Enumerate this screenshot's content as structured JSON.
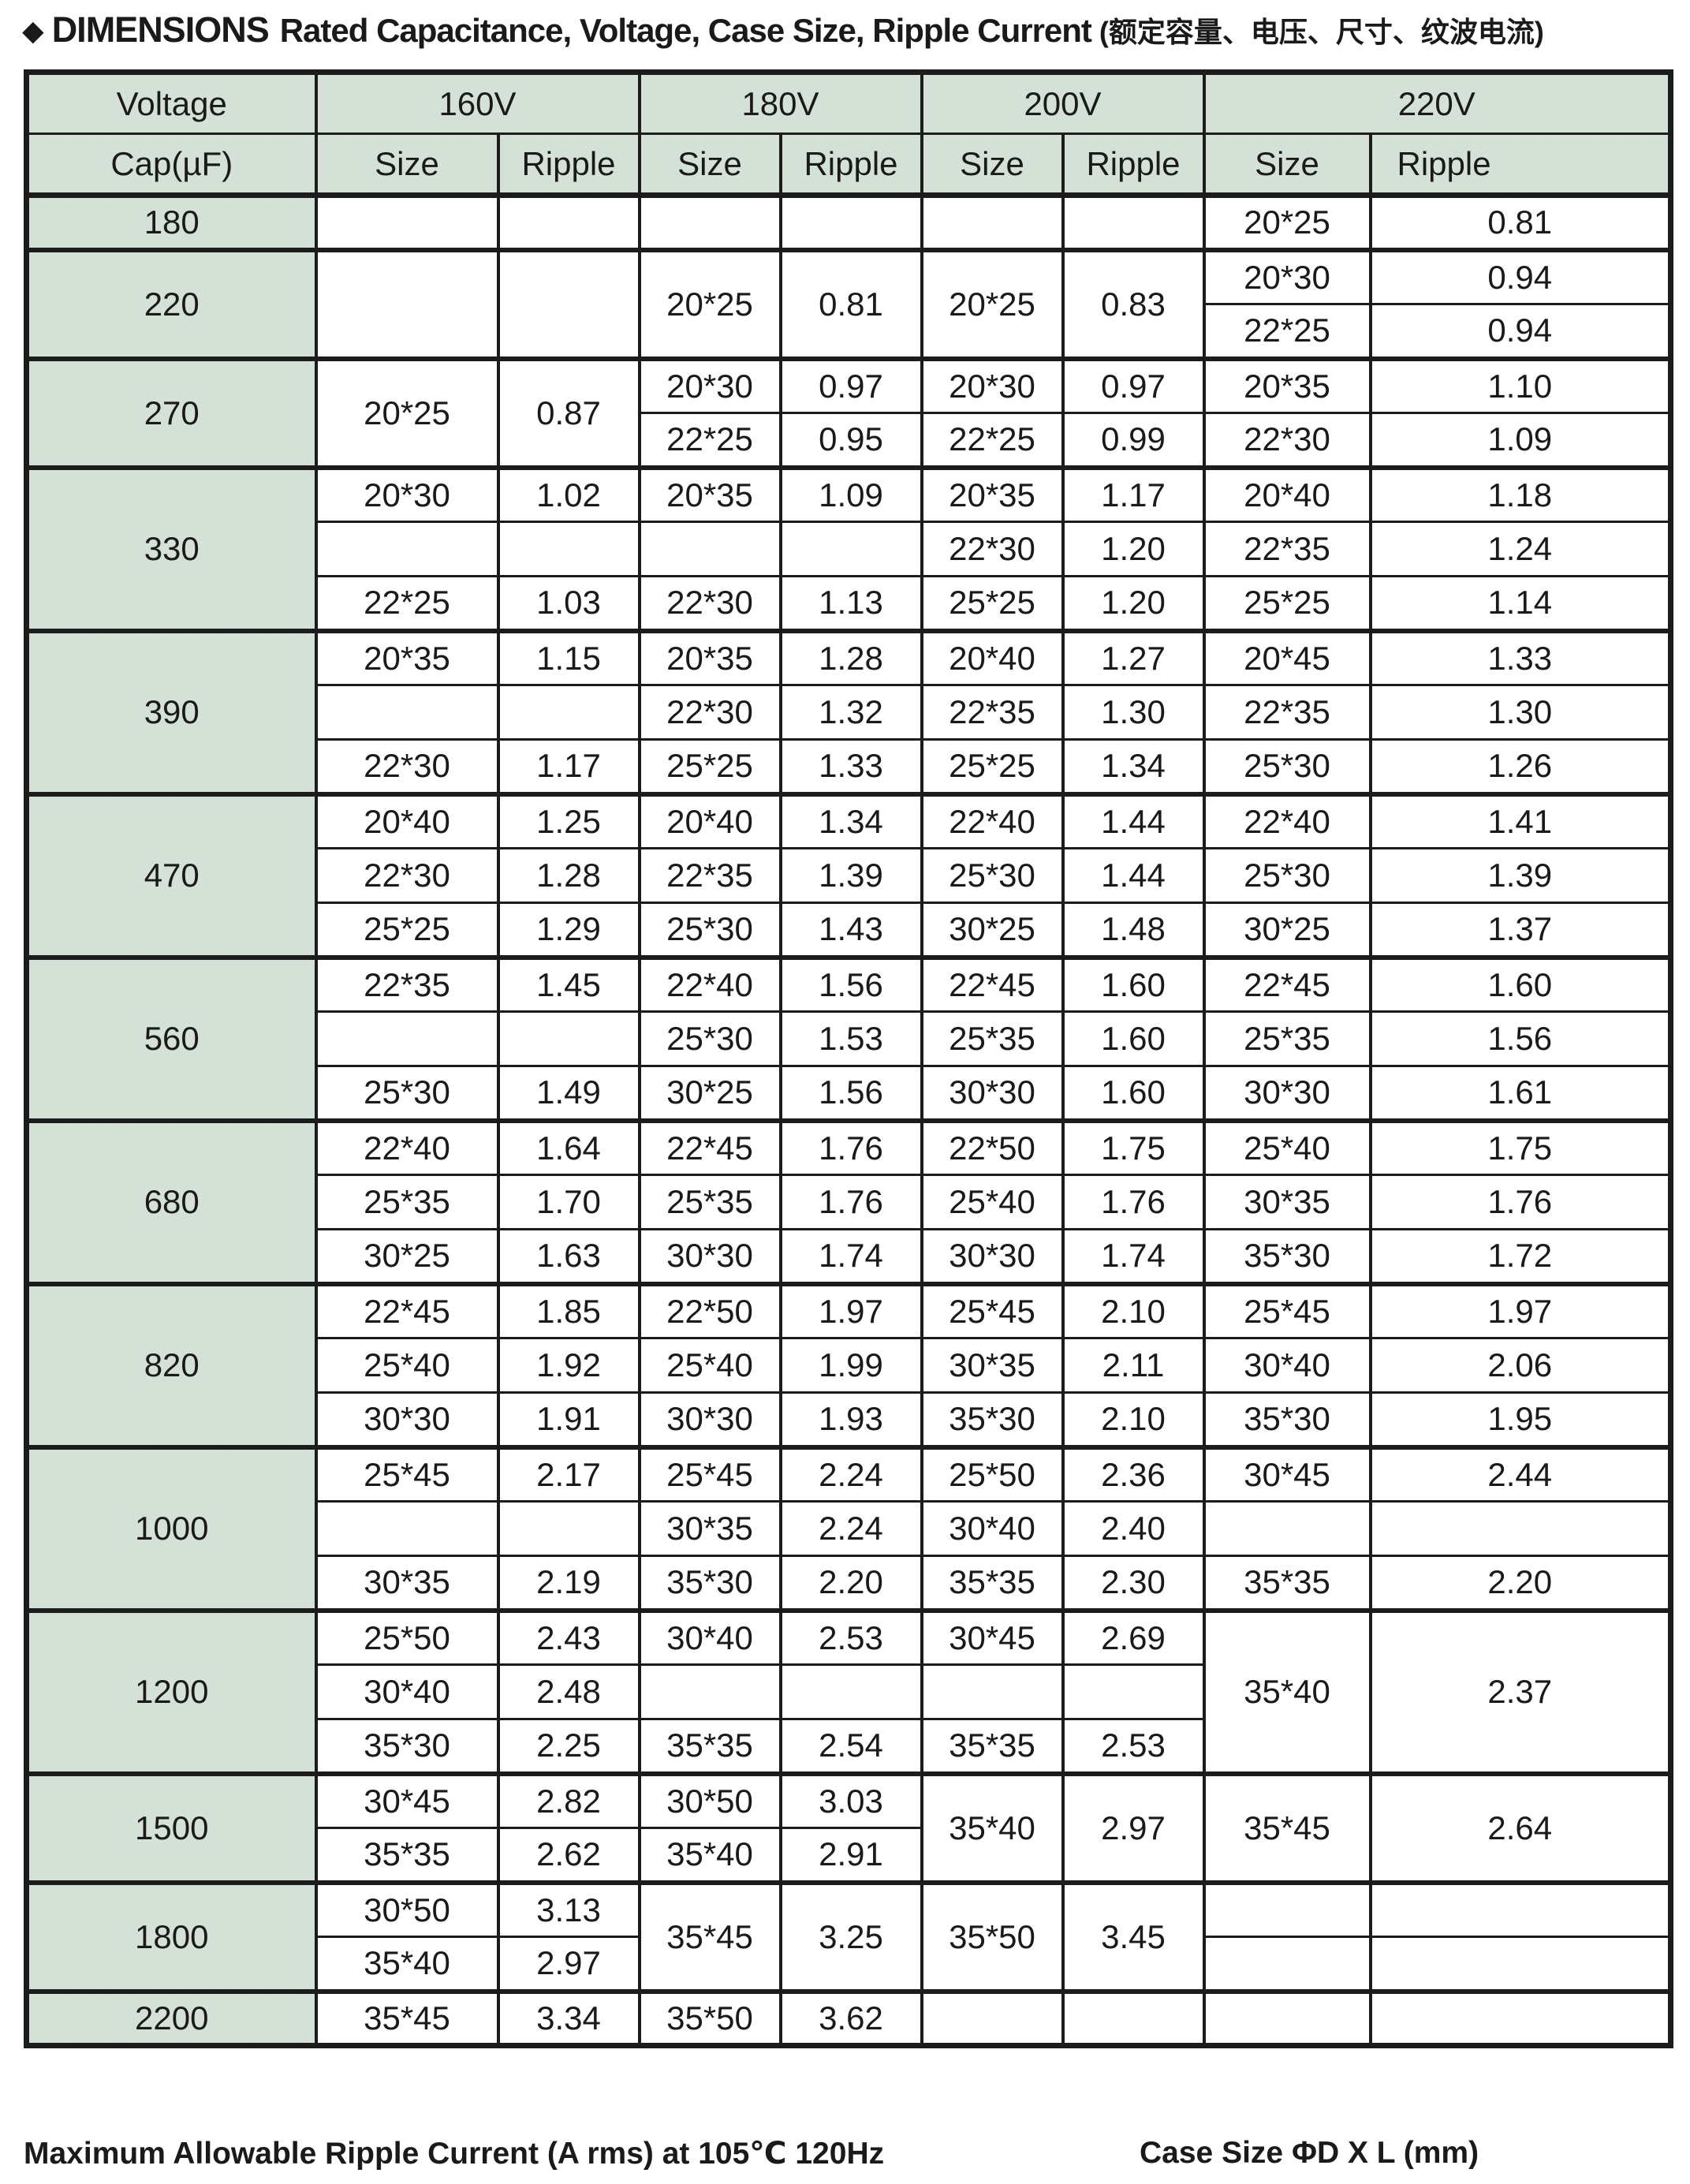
{
  "title": {
    "bullet": "◆",
    "main": "DIMENSIONS",
    "subtitle": "Rated Capacitance, Voltage, Case Size, Ripple Current",
    "subtitle_cn": "(额定容量、电压、尺寸、纹波电流)"
  },
  "header": {
    "voltage_label": "Voltage",
    "cap_label": "Cap(µF)",
    "size_label": "Size",
    "ripple_label": "Ripple",
    "voltages": [
      "160V",
      "180V",
      "200V",
      "220V"
    ]
  },
  "footer": {
    "left": "Maximum Allowable Ripple Current (A rms) at 105℃ 120Hz",
    "right": "Case Size ΦD X L (mm)"
  },
  "colors": {
    "header_green": "#d3e1d7",
    "border": "#1c1c1c"
  },
  "table": {
    "columns_order": [
      "160V Size",
      "160V Ripple",
      "180V Size",
      "180V Ripple",
      "200V Size",
      "200V Ripple",
      "220V Size",
      "220V Ripple"
    ],
    "groups": [
      {
        "cap": "180",
        "rows": [
          [
            "",
            "",
            "",
            "",
            "",
            "",
            "20*25",
            "0.81"
          ]
        ]
      },
      {
        "cap": "220",
        "rows": [
          [
            [
              "",
              2
            ],
            [
              "",
              2
            ],
            [
              "20*25",
              2
            ],
            [
              "0.81",
              2
            ],
            [
              "20*25",
              2
            ],
            [
              "0.83",
              2
            ],
            "20*30",
            "0.94"
          ],
          [
            "22*25",
            "0.94"
          ]
        ]
      },
      {
        "cap": "270",
        "rows": [
          [
            [
              "20*25",
              2
            ],
            [
              "0.87",
              2
            ],
            "20*30",
            "0.97",
            "20*30",
            "0.97",
            "20*35",
            "1.10"
          ],
          [
            "22*25",
            "0.95",
            "22*25",
            "0.99",
            "22*30",
            "1.09"
          ]
        ]
      },
      {
        "cap": "330",
        "rows": [
          [
            "20*30",
            "1.02",
            "20*35",
            "1.09",
            "20*35",
            "1.17",
            "20*40",
            "1.18"
          ],
          [
            "",
            "",
            "",
            "",
            "22*30",
            "1.20",
            "22*35",
            "1.24"
          ],
          [
            "22*25",
            "1.03",
            "22*30",
            "1.13",
            "25*25",
            "1.20",
            "25*25",
            "1.14"
          ]
        ]
      },
      {
        "cap": "390",
        "rows": [
          [
            "20*35",
            "1.15",
            "20*35",
            "1.28",
            "20*40",
            "1.27",
            "20*45",
            "1.33"
          ],
          [
            "",
            "",
            "22*30",
            "1.32",
            "22*35",
            "1.30",
            "22*35",
            "1.30"
          ],
          [
            "22*30",
            "1.17",
            "25*25",
            "1.33",
            "25*25",
            "1.34",
            "25*30",
            "1.26"
          ]
        ]
      },
      {
        "cap": "470",
        "rows": [
          [
            "20*40",
            "1.25",
            "20*40",
            "1.34",
            "22*40",
            "1.44",
            "22*40",
            "1.41"
          ],
          [
            "22*30",
            "1.28",
            "22*35",
            "1.39",
            "25*30",
            "1.44",
            "25*30",
            "1.39"
          ],
          [
            "25*25",
            "1.29",
            "25*30",
            "1.43",
            "30*25",
            "1.48",
            "30*25",
            "1.37"
          ]
        ]
      },
      {
        "cap": "560",
        "rows": [
          [
            "22*35",
            "1.45",
            "22*40",
            "1.56",
            "22*45",
            "1.60",
            "22*45",
            "1.60"
          ],
          [
            "",
            "",
            "25*30",
            "1.53",
            "25*35",
            "1.60",
            "25*35",
            "1.56"
          ],
          [
            "25*30",
            "1.49",
            "30*25",
            "1.56",
            "30*30",
            "1.60",
            "30*30",
            "1.61"
          ]
        ]
      },
      {
        "cap": "680",
        "rows": [
          [
            "22*40",
            "1.64",
            "22*45",
            "1.76",
            "22*50",
            "1.75",
            "25*40",
            "1.75"
          ],
          [
            "25*35",
            "1.70",
            "25*35",
            "1.76",
            "25*40",
            "1.76",
            "30*35",
            "1.76"
          ],
          [
            "30*25",
            "1.63",
            "30*30",
            "1.74",
            "30*30",
            "1.74",
            "35*30",
            "1.72"
          ]
        ]
      },
      {
        "cap": "820",
        "rows": [
          [
            "22*45",
            "1.85",
            "22*50",
            "1.97",
            "25*45",
            "2.10",
            "25*45",
            "1.97"
          ],
          [
            "25*40",
            "1.92",
            "25*40",
            "1.99",
            "30*35",
            "2.11",
            "30*40",
            "2.06"
          ],
          [
            "30*30",
            "1.91",
            "30*30",
            "1.93",
            "35*30",
            "2.10",
            "35*30",
            "1.95"
          ]
        ]
      },
      {
        "cap": "1000",
        "rows": [
          [
            "25*45",
            "2.17",
            "25*45",
            "2.24",
            "25*50",
            "2.36",
            "30*45",
            "2.44"
          ],
          [
            "",
            "",
            "30*35",
            "2.24",
            "30*40",
            "2.40",
            "",
            ""
          ],
          [
            "30*35",
            "2.19",
            "35*30",
            "2.20",
            "35*35",
            "2.30",
            "35*35",
            "2.20"
          ]
        ]
      },
      {
        "cap": "1200",
        "rows": [
          [
            "25*50",
            "2.43",
            "30*40",
            "2.53",
            "30*45",
            "2.69",
            [
              "35*40",
              3
            ],
            [
              "2.37",
              3
            ]
          ],
          [
            "30*40",
            "2.48",
            "",
            "",
            "",
            ""
          ],
          [
            "35*30",
            "2.25",
            "35*35",
            "2.54",
            "35*35",
            "2.53"
          ]
        ]
      },
      {
        "cap": "1500",
        "rows": [
          [
            "30*45",
            "2.82",
            "30*50",
            "3.03",
            [
              "35*40",
              2
            ],
            [
              "2.97",
              2
            ],
            [
              "35*45",
              2
            ],
            [
              "2.64",
              2
            ]
          ],
          [
            "35*35",
            "2.62",
            "35*40",
            "2.91"
          ]
        ]
      },
      {
        "cap": "1800",
        "rows": [
          [
            "30*50",
            "3.13",
            [
              "35*45",
              2
            ],
            [
              "3.25",
              2
            ],
            [
              "35*50",
              2
            ],
            [
              "3.45",
              2
            ],
            "",
            ""
          ],
          [
            "35*40",
            "2.97",
            "",
            ""
          ]
        ]
      },
      {
        "cap": "2200",
        "rows": [
          [
            "35*45",
            "3.34",
            "35*50",
            "3.62",
            "",
            "",
            "",
            ""
          ]
        ]
      }
    ]
  }
}
